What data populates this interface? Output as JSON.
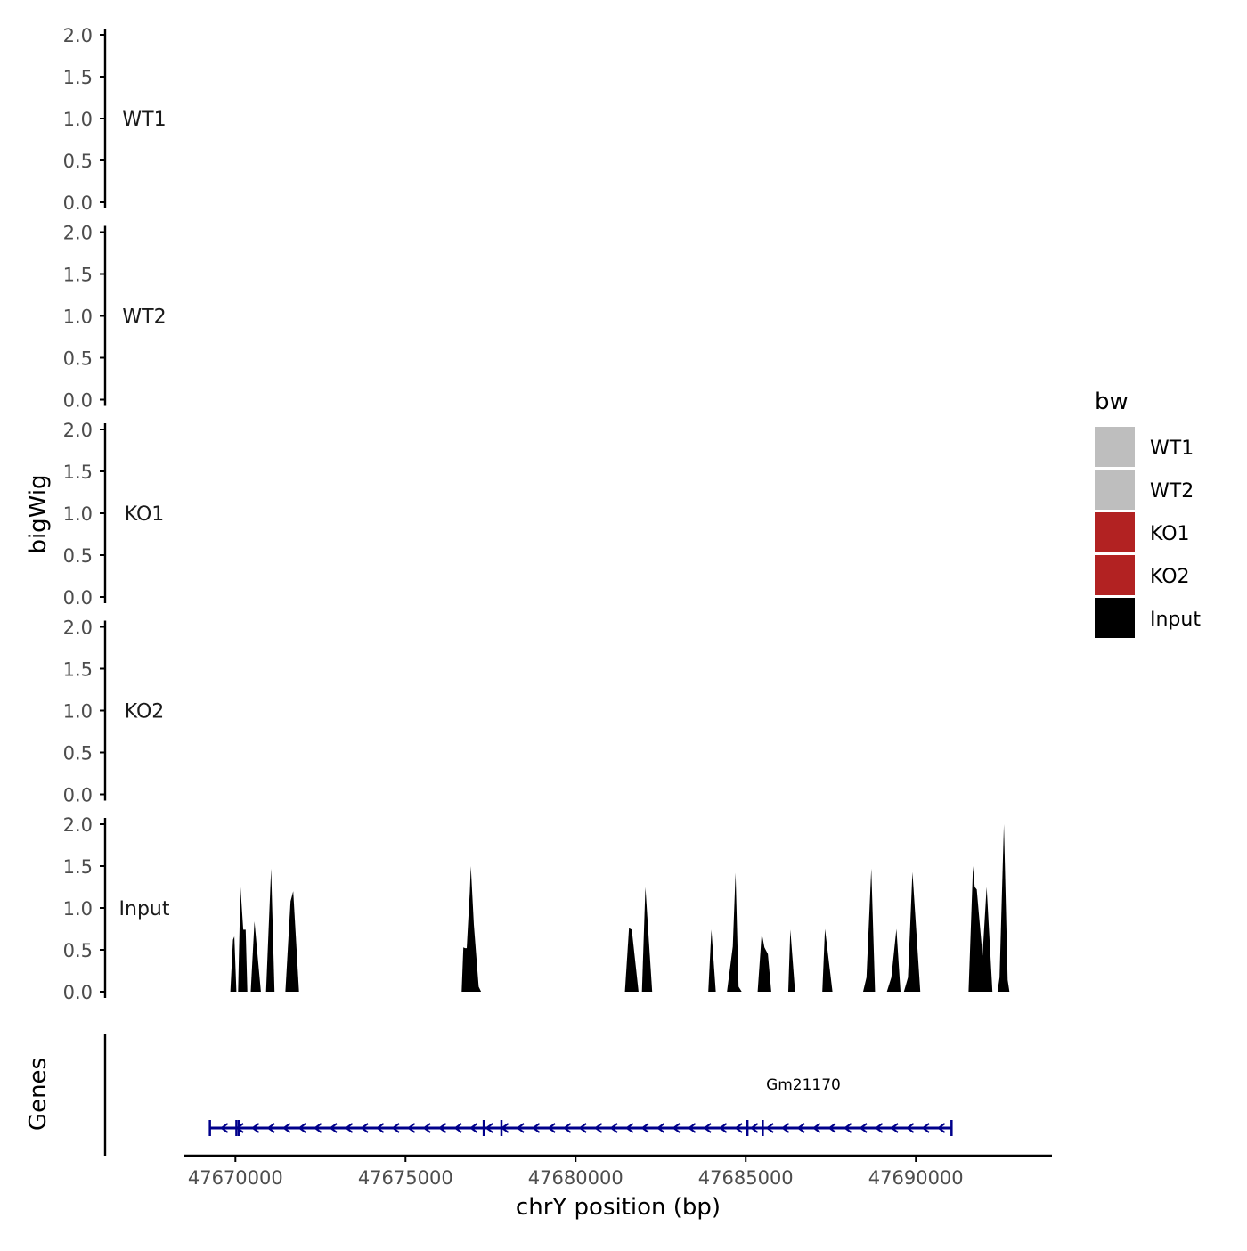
{
  "chart_data": {
    "type": "area",
    "ylabel": "bigWig",
    "xlabel": "chrY position (bp)",
    "genes_label": "Genes",
    "x_range": [
      47668500,
      47694000
    ],
    "x_ticks": [
      47670000,
      47675000,
      47680000,
      47685000,
      47690000
    ],
    "x_tick_labels": [
      "47670000",
      "47675000",
      "47680000",
      "47685000",
      "47690000"
    ],
    "ylim": [
      0,
      2
    ],
    "y_ticks": [
      0,
      0.5,
      1,
      1.5,
      2
    ],
    "y_tick_labels": [
      "0.0",
      "0.5",
      "1.0",
      "1.5",
      "2.0"
    ],
    "legend": {
      "title": "bw",
      "position": "right",
      "items": [
        {
          "label": "WT1",
          "color": "#bebebe"
        },
        {
          "label": "WT2",
          "color": "#bebebe"
        },
        {
          "label": "KO1",
          "color": "#b22222"
        },
        {
          "label": "KO2",
          "color": "#b22222"
        },
        {
          "label": "Input",
          "color": "#000000"
        }
      ]
    },
    "tracks": [
      {
        "name": "WT1",
        "color": "#bebebe",
        "peaks": []
      },
      {
        "name": "WT2",
        "color": "#bebebe",
        "peaks": []
      },
      {
        "name": "KO1",
        "color": "#b22222",
        "peaks": []
      },
      {
        "name": "KO2",
        "color": "#b22222",
        "peaks": []
      },
      {
        "name": "Input",
        "color": "#000000",
        "peaks": [
          [
            [
              47669850,
              0
            ],
            [
              47669930,
              0.62
            ],
            [
              47669970,
              0.66
            ],
            [
              47670030,
              0
            ]
          ],
          [
            [
              47670080,
              0
            ],
            [
              47670150,
              1.25
            ],
            [
              47670230,
              0.74
            ],
            [
              47670300,
              0.74
            ],
            [
              47670350,
              0
            ]
          ],
          [
            [
              47670450,
              0
            ],
            [
              47670560,
              0.84
            ],
            [
              47670750,
              0
            ]
          ],
          [
            [
              47670900,
              0
            ],
            [
              47671050,
              1.47
            ],
            [
              47671150,
              0
            ]
          ],
          [
            [
              47671470,
              0
            ],
            [
              47671620,
              1.08
            ],
            [
              47671700,
              1.2
            ],
            [
              47671870,
              0
            ]
          ],
          [
            [
              47676650,
              0
            ],
            [
              47676700,
              0.53
            ],
            [
              47676750,
              0.52
            ],
            [
              47676800,
              0.52
            ],
            [
              47676890,
              1.2
            ],
            [
              47676920,
              1.5
            ],
            [
              47677010,
              0.8
            ],
            [
              47677150,
              0.06
            ],
            [
              47677220,
              0
            ]
          ],
          [
            [
              47681450,
              0
            ],
            [
              47681570,
              0.76
            ],
            [
              47681650,
              0.74
            ],
            [
              47681850,
              0
            ]
          ],
          [
            [
              47681950,
              0
            ],
            [
              47682050,
              1.25
            ],
            [
              47682250,
              0
            ]
          ],
          [
            [
              47683900,
              0
            ],
            [
              47683990,
              0.74
            ],
            [
              47684120,
              0
            ]
          ],
          [
            [
              47684450,
              0
            ],
            [
              47684620,
              0.54
            ],
            [
              47684700,
              1.42
            ],
            [
              47684790,
              0.06
            ],
            [
              47684880,
              0
            ]
          ],
          [
            [
              47685350,
              0
            ],
            [
              47685470,
              0.7
            ],
            [
              47685550,
              0.53
            ],
            [
              47685650,
              0.45
            ],
            [
              47685750,
              0
            ]
          ],
          [
            [
              47686250,
              0
            ],
            [
              47686310,
              0.74
            ],
            [
              47686450,
              0
            ]
          ],
          [
            [
              47687250,
              0
            ],
            [
              47687330,
              0.75
            ],
            [
              47687550,
              0
            ]
          ],
          [
            [
              47688450,
              0
            ],
            [
              47688550,
              0.17
            ],
            [
              47688690,
              1.47
            ],
            [
              47688800,
              0
            ]
          ],
          [
            [
              47689150,
              0
            ],
            [
              47689280,
              0.17
            ],
            [
              47689430,
              0.75
            ],
            [
              47689550,
              0
            ]
          ],
          [
            [
              47689650,
              0
            ],
            [
              47689770,
              0.17
            ],
            [
              47689900,
              1.43
            ],
            [
              47690130,
              0
            ]
          ],
          [
            [
              47691550,
              0
            ],
            [
              47691680,
              1.5
            ],
            [
              47691730,
              1.25
            ],
            [
              47691790,
              1.22
            ],
            [
              47691960,
              0.43
            ],
            [
              47692080,
              1.25
            ],
            [
              47692250,
              0
            ]
          ],
          [
            [
              47692400,
              0
            ],
            [
              47692460,
              0.17
            ],
            [
              47692590,
              2.0
            ],
            [
              47692700,
              0.14
            ],
            [
              47692750,
              0
            ]
          ]
        ]
      }
    ],
    "genes": [
      {
        "name": "Gm21170",
        "start": 47669250,
        "end": 47691050,
        "strand": "-",
        "color": "#00008b",
        "exon_marks": [
          47669250,
          47670030,
          47670100,
          47677300,
          47677820,
          47685050,
          47685500,
          47691050
        ]
      }
    ]
  }
}
